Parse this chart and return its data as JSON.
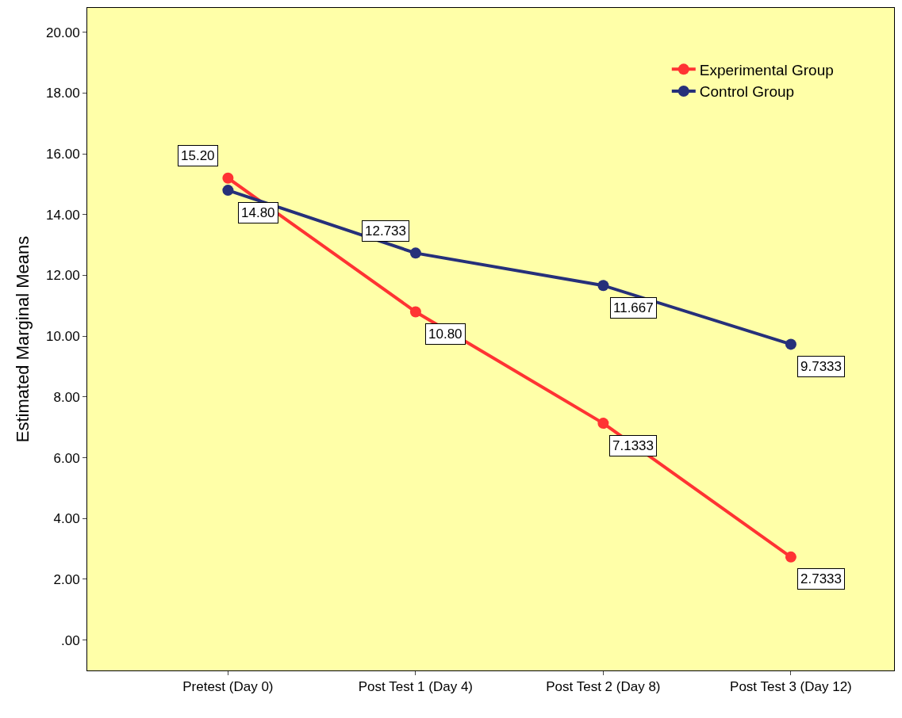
{
  "chart_data": {
    "type": "line",
    "ylabel": "Estimated Marginal Means",
    "categories": [
      "Pretest (Day 0)",
      "Post Test 1 (Day 4)",
      "Post Test 2 (Day 8)",
      "Post Test 3 (Day 12)"
    ],
    "series": [
      {
        "name": "Experimental Group",
        "color": "#ff3333",
        "values": [
          15.2,
          10.8,
          7.1333,
          2.7333
        ],
        "value_labels": [
          "15.20",
          "10.80",
          "7.1333",
          "2.7333"
        ]
      },
      {
        "name": "Control Group",
        "color": "#26307a",
        "values": [
          14.8,
          12.733,
          11.667,
          9.7333
        ],
        "value_labels": [
          "14.80",
          "12.733",
          "11.667",
          "9.7333"
        ]
      }
    ],
    "ylim": [
      -1,
      20.8
    ],
    "yticks": [
      {
        "value": 0,
        "label": ".00"
      },
      {
        "value": 2,
        "label": "2.00"
      },
      {
        "value": 4,
        "label": "4.00"
      },
      {
        "value": 6,
        "label": "6.00"
      },
      {
        "value": 8,
        "label": "8.00"
      },
      {
        "value": 10,
        "label": "10.00"
      },
      {
        "value": 12,
        "label": "12.00"
      },
      {
        "value": 14,
        "label": "14.00"
      },
      {
        "value": 16,
        "label": "16.00"
      },
      {
        "value": 18,
        "label": "18.00"
      },
      {
        "value": 20,
        "label": "20.00"
      }
    ],
    "grid": false,
    "legend": "top right",
    "marker": "circle",
    "line_style": "solid"
  }
}
